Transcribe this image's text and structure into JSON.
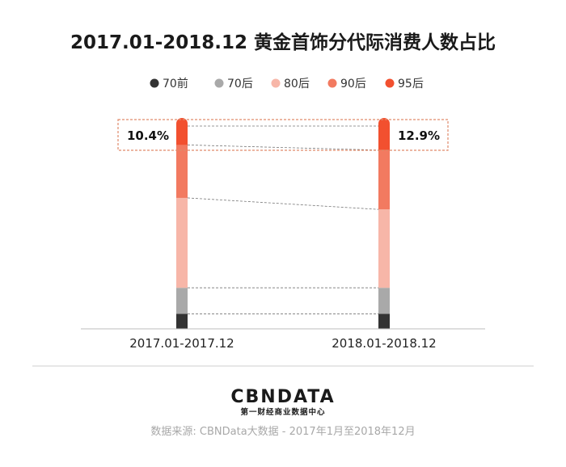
{
  "chart_data": {
    "type": "bar",
    "stacked": true,
    "title": "2017.01-2018.12 黄金首饰分代际消费人数占比",
    "categories": [
      "2017.01-2017.12",
      "2018.01-2018.12"
    ],
    "series": [
      {
        "name": "70前",
        "color": "#333333",
        "values": [
          7.3,
          7.3
        ]
      },
      {
        "name": "70后",
        "color": "#a9a9a9",
        "values": [
          12.7,
          12.7
        ]
      },
      {
        "name": "80后",
        "color": "#f7b6a8",
        "values": [
          43.8,
          38.2
        ]
      },
      {
        "name": "90后",
        "color": "#f27a60",
        "values": [
          25.8,
          28.9
        ]
      },
      {
        "name": "95后",
        "color": "#f2502f",
        "values": [
          10.4,
          12.9
        ]
      }
    ],
    "annotations": [
      "10.4%",
      "12.9%"
    ],
    "ylim": [
      0,
      100
    ],
    "legend_position": "top",
    "grid": false
  },
  "footer": {
    "logo": "CBNDATA",
    "logo_subtitle": "第一财经商业数据中心",
    "source": "数据来源: CBNData大数据 - 2017年1月至2018年12月"
  }
}
